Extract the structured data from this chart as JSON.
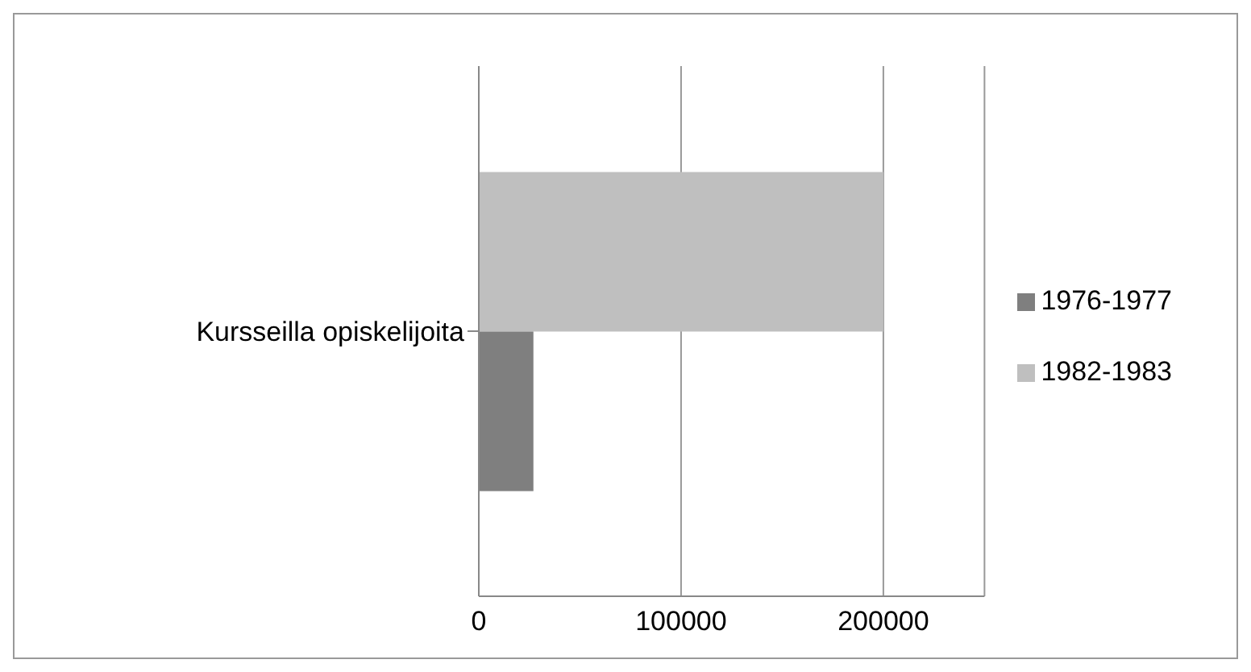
{
  "chart_data": {
    "type": "bar",
    "orientation": "horizontal",
    "categories": [
      "Kursseilla  opiskelijoita"
    ],
    "series": [
      {
        "name": "1982-1983",
        "color": "#bfbfbf",
        "values": [
          200000
        ]
      },
      {
        "name": "1976-1977",
        "color": "#7f7f7f",
        "values": [
          27000
        ]
      }
    ],
    "xlim": [
      0,
      250000
    ],
    "xticks": [
      0,
      100000,
      200000
    ],
    "grid": "x",
    "legend": "right"
  }
}
